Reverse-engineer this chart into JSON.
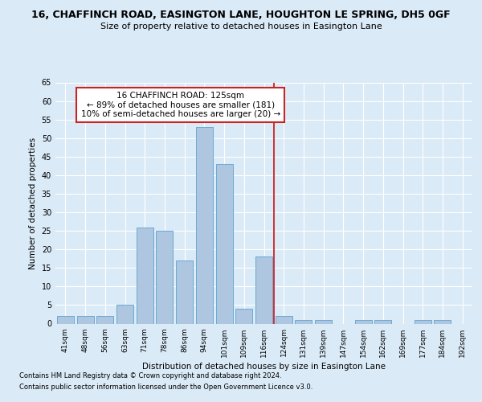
{
  "title_line1": "16, CHAFFINCH ROAD, EASINGTON LANE, HOUGHTON LE SPRING, DH5 0GF",
  "title_line2": "Size of property relative to detached houses in Easington Lane",
  "xlabel": "Distribution of detached houses by size in Easington Lane",
  "ylabel": "Number of detached properties",
  "categories": [
    "41sqm",
    "48sqm",
    "56sqm",
    "63sqm",
    "71sqm",
    "78sqm",
    "86sqm",
    "94sqm",
    "101sqm",
    "109sqm",
    "116sqm",
    "124sqm",
    "131sqm",
    "139sqm",
    "147sqm",
    "154sqm",
    "162sqm",
    "169sqm",
    "177sqm",
    "184sqm",
    "192sqm"
  ],
  "values": [
    2,
    2,
    2,
    5,
    26,
    25,
    17,
    53,
    43,
    4,
    18,
    2,
    1,
    1,
    0,
    1,
    1,
    0,
    1,
    1,
    0
  ],
  "bar_color": "#aec6df",
  "bar_edge_color": "#6aaad4",
  "annotation_text": "16 CHAFFINCH ROAD: 125sqm\n← 89% of detached houses are smaller (181)\n10% of semi-detached houses are larger (20) →",
  "annotation_box_facecolor": "#ffffff",
  "annotation_box_edgecolor": "#cc2222",
  "vline_color": "#cc2222",
  "vline_x": 10.5,
  "background_color": "#daeaf7",
  "ylim": [
    0,
    65
  ],
  "yticks": [
    0,
    5,
    10,
    15,
    20,
    25,
    30,
    35,
    40,
    45,
    50,
    55,
    60,
    65
  ],
  "footer_line1": "Contains HM Land Registry data © Crown copyright and database right 2024.",
  "footer_line2": "Contains public sector information licensed under the Open Government Licence v3.0."
}
